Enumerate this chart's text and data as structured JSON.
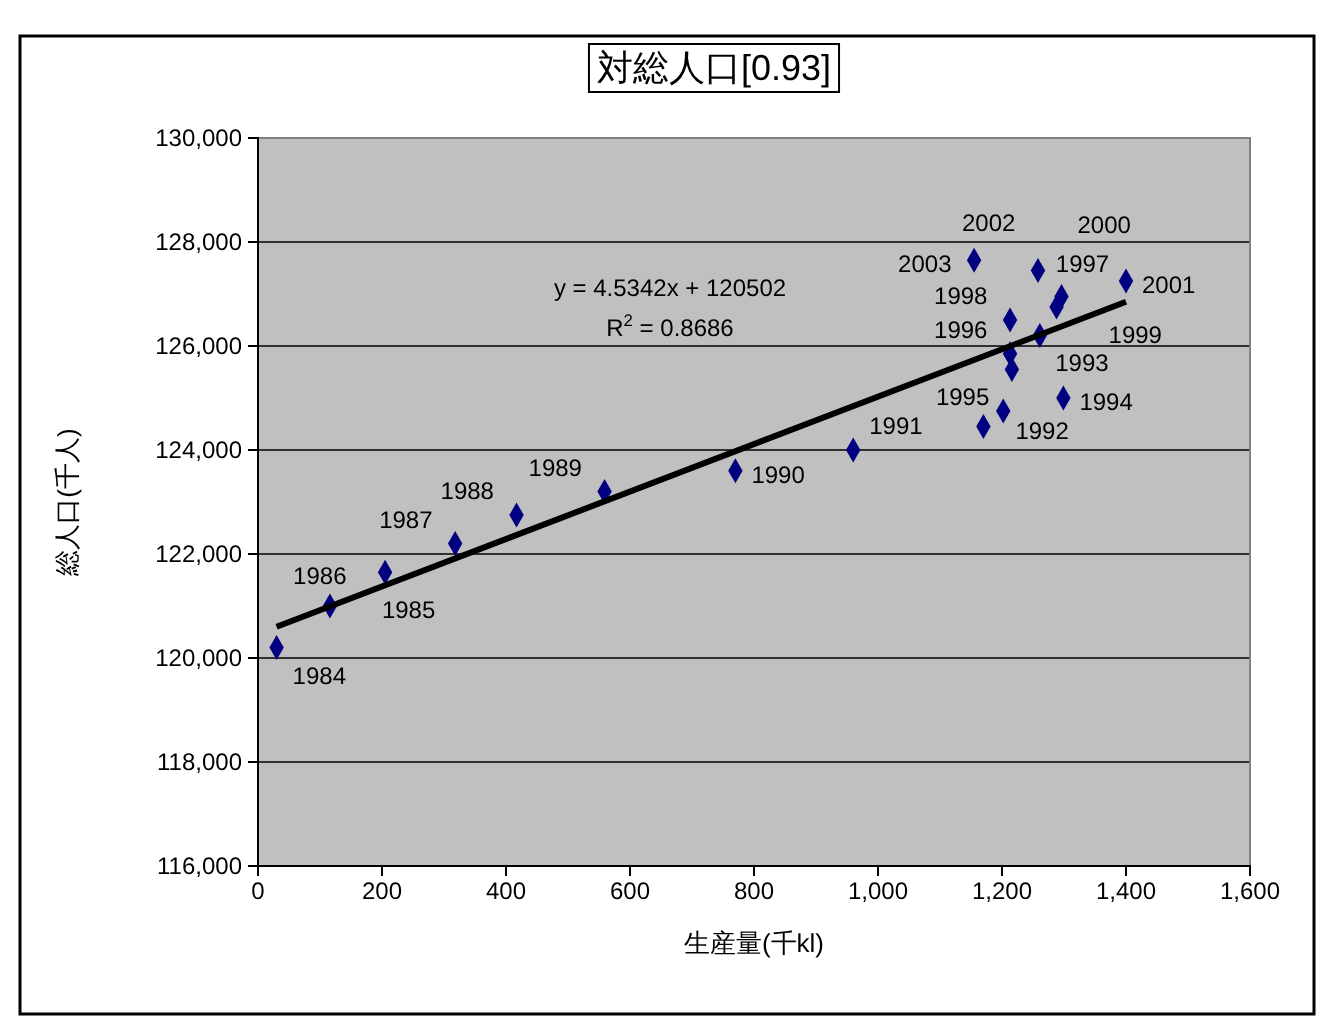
{
  "chart_data": {
    "type": "scatter",
    "title": "対総人口[0.93]",
    "xlabel": "生産量(千kl)",
    "ylabel": "総人口(千人)",
    "xlim": [
      0,
      1600
    ],
    "xticks": [
      {
        "value": 0,
        "label": "0"
      },
      {
        "value": 200,
        "label": "200"
      },
      {
        "value": 400,
        "label": "400"
      },
      {
        "value": 600,
        "label": "600"
      },
      {
        "value": 800,
        "label": "800"
      },
      {
        "value": 1000,
        "label": "1,000"
      },
      {
        "value": 1200,
        "label": "1,200"
      },
      {
        "value": 1400,
        "label": "1,400"
      },
      {
        "value": 1600,
        "label": "1,600"
      }
    ],
    "ylim": [
      116000,
      130000
    ],
    "yticks": [
      {
        "value": 116000,
        "label": "116,000"
      },
      {
        "value": 118000,
        "label": "118,000"
      },
      {
        "value": 120000,
        "label": "120,000"
      },
      {
        "value": 122000,
        "label": "122,000"
      },
      {
        "value": 124000,
        "label": "124,000"
      },
      {
        "value": 126000,
        "label": "126,000"
      },
      {
        "value": 128000,
        "label": "128,000"
      },
      {
        "value": 130000,
        "label": "130,000"
      }
    ],
    "grid": "y",
    "marker": "diamond",
    "series": [
      {
        "color": "#000080",
        "x": [
          30,
          116,
          205,
          318,
          417,
          559,
          770,
          960,
          1170,
          1202,
          1299,
          1216,
          1213,
          1261,
          1213,
          1288,
          1296,
          1400,
          1258,
          1155
        ],
        "values": [
          120200,
          121000,
          121650,
          122200,
          122750,
          123200,
          123600,
          124000,
          124450,
          124750,
          125000,
          125550,
          125850,
          126200,
          126500,
          126750,
          126950,
          127250,
          127450,
          127650
        ]
      },
      {
        "type": "line",
        "color": "#000000",
        "marker": "none",
        "x": [
          30,
          1400
        ],
        "values": [
          120600,
          126850
        ]
      }
    ],
    "annotations": [
      {
        "text": "1984",
        "x": 30,
        "y": 120200
      },
      {
        "text": "1985",
        "x": 116,
        "y": 121000
      },
      {
        "text": "1986",
        "x": 205,
        "y": 121650
      },
      {
        "text": "1987",
        "x": 318,
        "y": 122200
      },
      {
        "text": "1988",
        "x": 417,
        "y": 122750
      },
      {
        "text": "1989",
        "x": 559,
        "y": 123200
      },
      {
        "text": "1990",
        "x": 770,
        "y": 123600
      },
      {
        "text": "1991",
        "x": 960,
        "y": 124000
      },
      {
        "text": "1992",
        "x": 1170,
        "y": 124450
      },
      {
        "text": "1993",
        "x": 1202,
        "y": 124750
      },
      {
        "text": "1994",
        "x": 1299,
        "y": 125000
      },
      {
        "text": "1995",
        "x": 1216,
        "y": 125550
      },
      {
        "text": "1996",
        "x": 1213,
        "y": 125850
      },
      {
        "text": "1997",
        "x": 1261,
        "y": 126200
      },
      {
        "text": "1998",
        "x": 1213,
        "y": 126500
      },
      {
        "text": "1999",
        "x": 1288,
        "y": 126750
      },
      {
        "text": "2000",
        "x": 1296,
        "y": 126950
      },
      {
        "text": "2001",
        "x": 1400,
        "y": 127250
      },
      {
        "text": "2002",
        "x": 1258,
        "y": 127450
      },
      {
        "text": "2003",
        "x": 1155,
        "y": 127650
      },
      "y = 4.5342x + 120502",
      "R$^{2}$ = 0.8686"
    ]
  }
}
